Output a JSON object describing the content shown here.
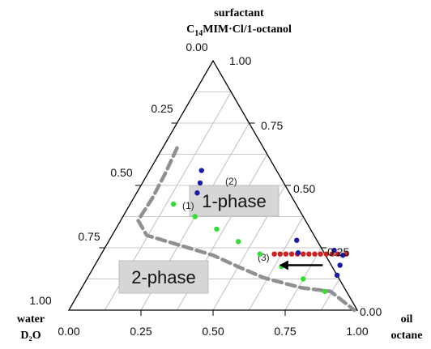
{
  "chart_data": {
    "type": "ternary",
    "corners": {
      "top": {
        "line1": "surfactant",
        "sub_prefix": "C",
        "sub": "14",
        "sub_suffix": "MIM·Cl/1-octanol"
      },
      "left": {
        "line1": "water",
        "line2": "D₂O"
      },
      "right": {
        "line1": "oil",
        "line2": "octane"
      }
    },
    "tick_values": [
      "0.00",
      "0.25",
      "0.50",
      "0.75",
      "1.00"
    ],
    "left_axis_ticks": [
      "0.25",
      "0.50",
      "0.75",
      "1.00"
    ],
    "bottom_axis_ticks": [
      "0.00",
      "0.25",
      "0.50",
      "0.75",
      "1.00"
    ],
    "right_axis_ticks": [
      "1.00",
      "0.75",
      "0.50",
      "0.25",
      "0.00"
    ],
    "top_axis_tick": "0.00",
    "grid": true,
    "regions": [
      {
        "label": "1-phase"
      },
      {
        "label": "2-phase"
      }
    ],
    "annotations": [
      "(2)",
      "(1)",
      "(3)"
    ],
    "colors": {
      "green": "#33dd33",
      "blue": "#1a1aaa",
      "red": "#cc2222",
      "boundary": "#909090",
      "label_box": "#d6d6d6"
    },
    "series": [
      {
        "color": "green",
        "points": [
          [
            0.425,
            0.15
          ],
          [
            0.375,
            0.25
          ],
          [
            0.325,
            0.35
          ],
          [
            0.275,
            0.45
          ],
          [
            0.225,
            0.55
          ],
          [
            0.175,
            0.65
          ],
          [
            0.125,
            0.75
          ],
          [
            0.075,
            0.85
          ]
        ]
      },
      {
        "color": "red",
        "points": [
          [
            0.225,
            0.6
          ],
          [
            0.225,
            0.62
          ],
          [
            0.225,
            0.64
          ],
          [
            0.225,
            0.66
          ],
          [
            0.225,
            0.68
          ],
          [
            0.225,
            0.7
          ],
          [
            0.225,
            0.72
          ],
          [
            0.225,
            0.74
          ],
          [
            0.225,
            0.76
          ],
          [
            0.225,
            0.78
          ],
          [
            0.225,
            0.8
          ],
          [
            0.225,
            0.82
          ],
          [
            0.225,
            0.85
          ]
        ]
      },
      {
        "color": "blue",
        "points": [
          [
            0.56,
            0.18
          ],
          [
            0.51,
            0.2
          ],
          [
            0.47,
            0.21
          ],
          [
            0.28,
            0.65
          ],
          [
            0.23,
            0.68
          ],
          [
            0.24,
            0.8
          ],
          [
            0.22,
            0.84
          ],
          [
            0.18,
            0.85
          ],
          [
            0.14,
            0.86
          ]
        ]
      }
    ],
    "boundary": [
      [
        0.65,
        0.05
      ],
      [
        0.55,
        0.06
      ],
      [
        0.45,
        0.065
      ],
      [
        0.36,
        0.06
      ],
      [
        0.3,
        0.12
      ],
      [
        0.22,
        0.39
      ],
      [
        0.17,
        0.51
      ],
      [
        0.13,
        0.61
      ],
      [
        0.09,
        0.76
      ],
      [
        0.075,
        0.87
      ],
      [
        0.0,
        0.99
      ]
    ],
    "arrow": {
      "from": [
        0.18,
        0.79
      ],
      "to": [
        0.18,
        0.64
      ]
    }
  }
}
